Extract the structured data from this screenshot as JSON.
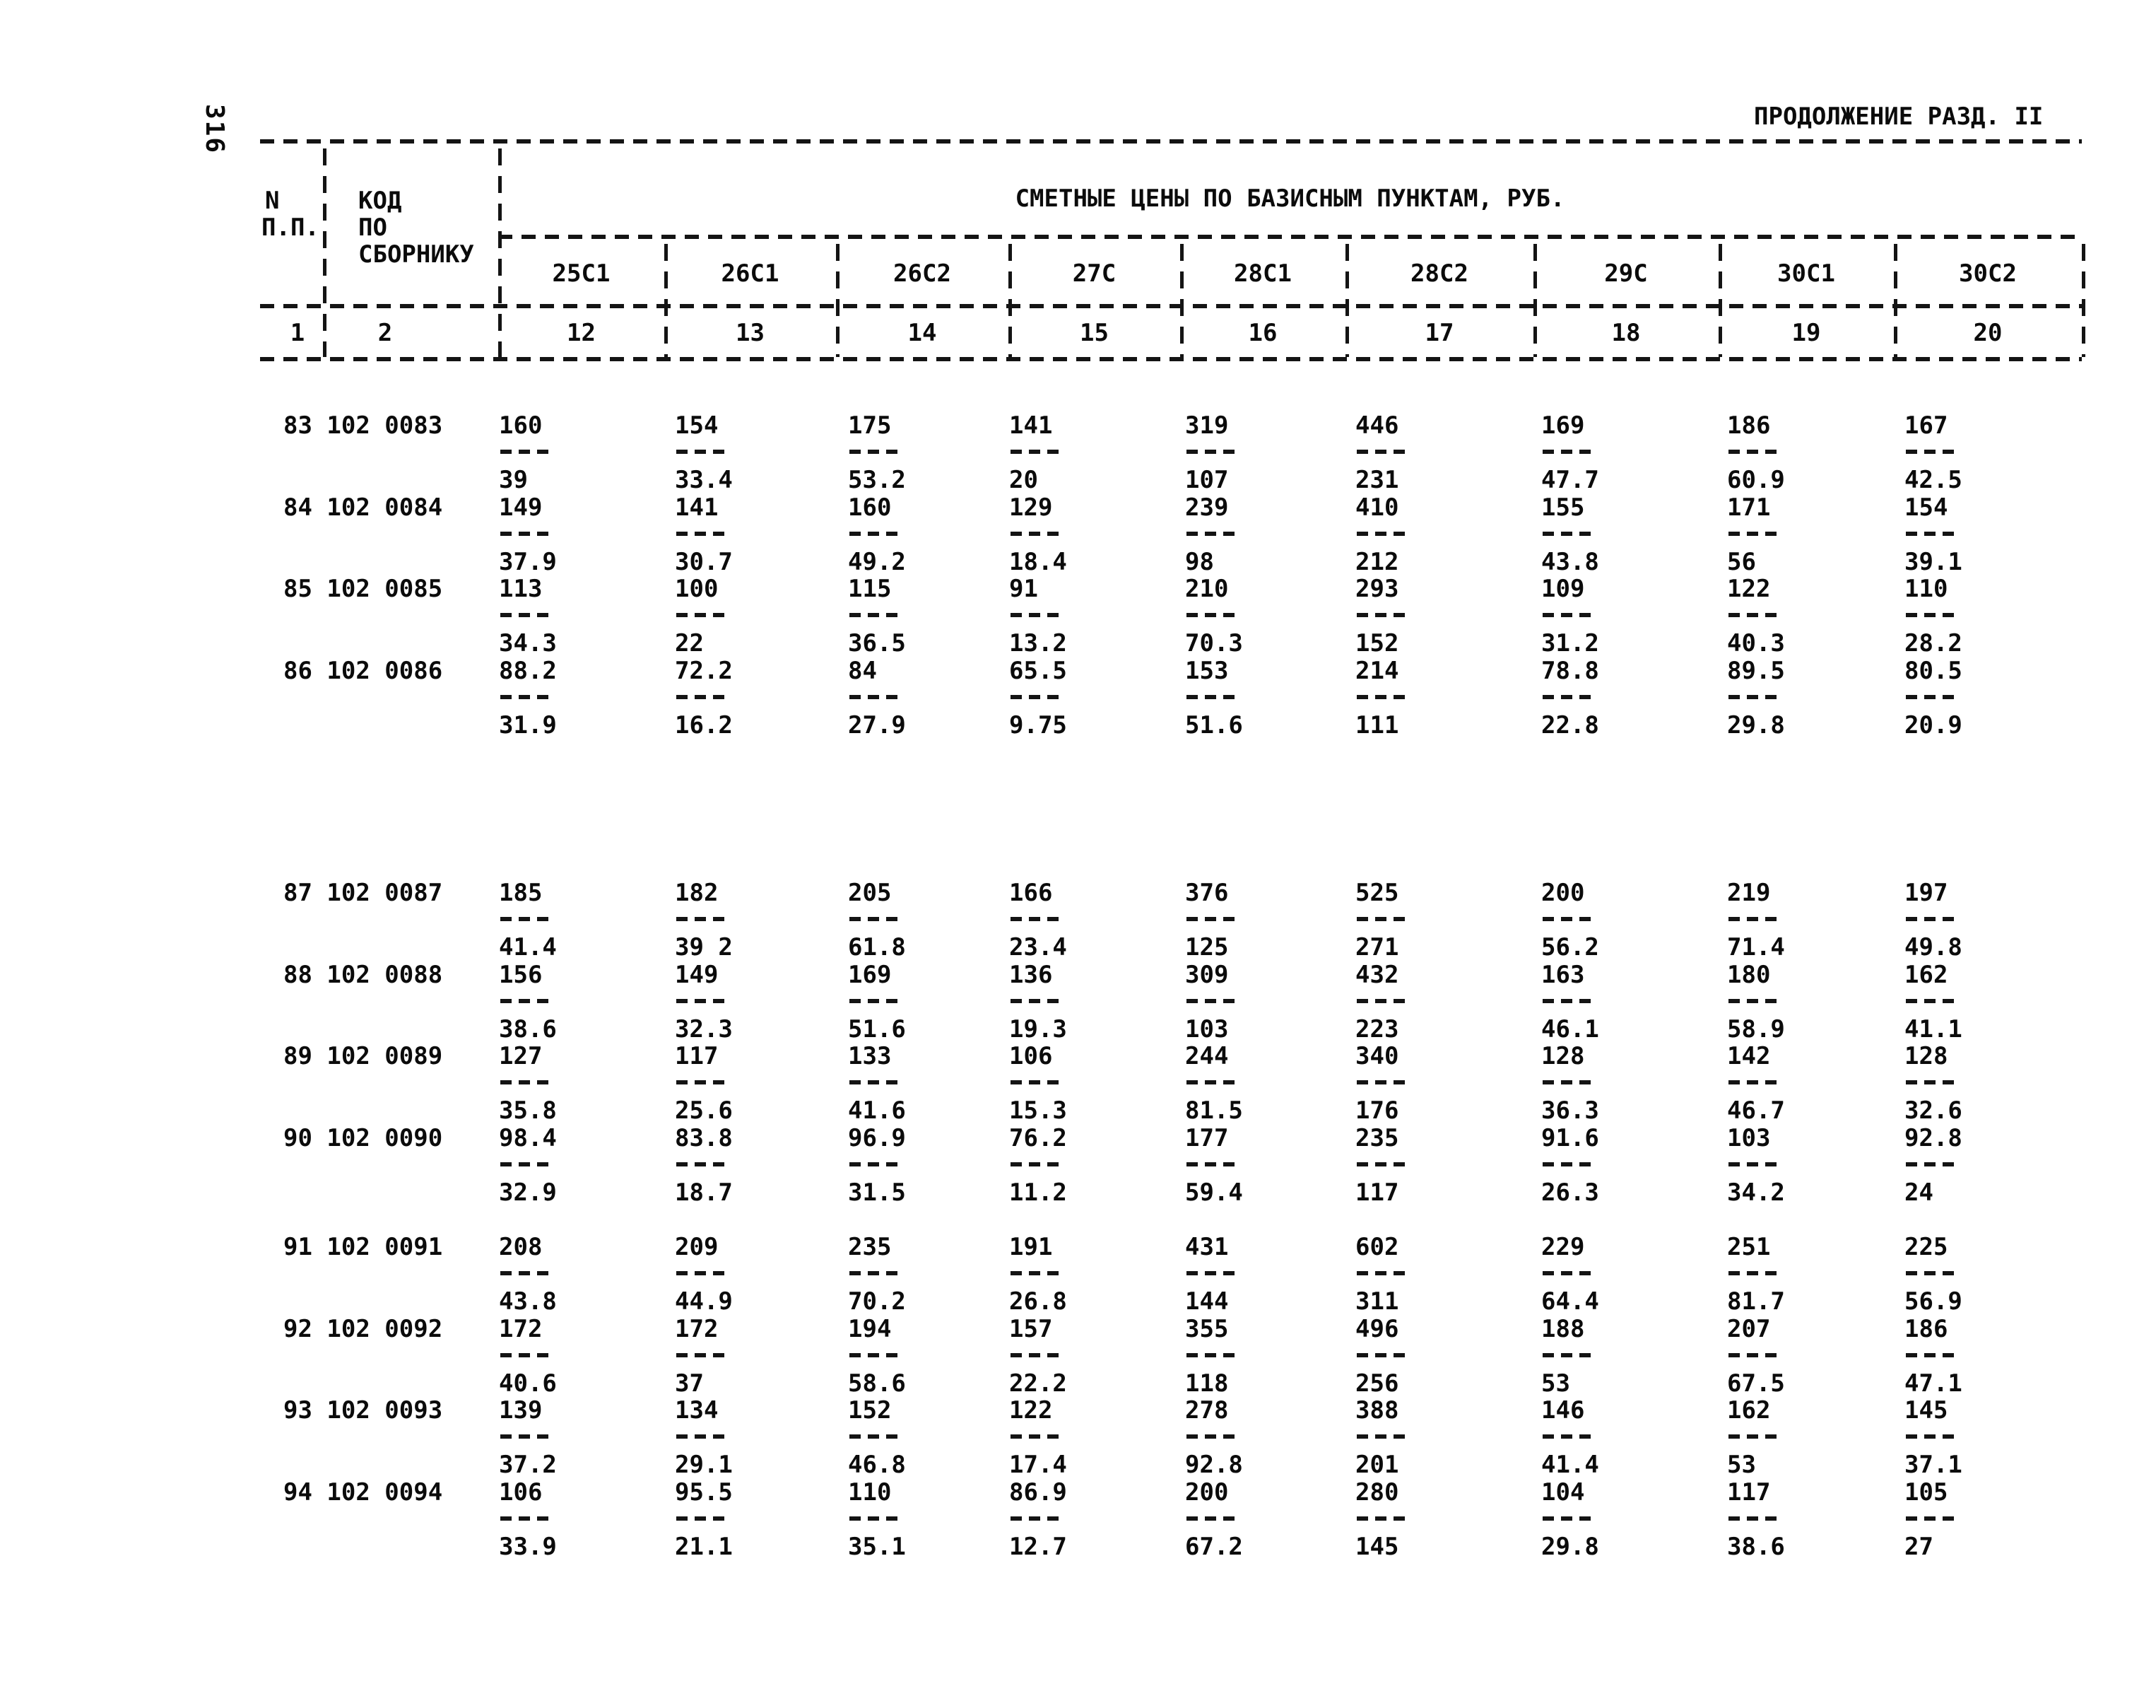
{
  "page": {
    "number": "316",
    "header_right": "ПРОДОЛЖЕНИЕ РАЗД. II"
  },
  "table": {
    "span_header": "СМЕТНЫЕ ЦЕНЫ ПО БАЗИСНЫМ ПУНКТАМ, РУБ.",
    "col1_header": {
      "line1": "N",
      "line2": "П.П."
    },
    "col2_header": {
      "line1": "КОД",
      "line2": "ПО",
      "line3": "СБОРНИКУ"
    },
    "col1_number": "1",
    "col2_number": "2",
    "price_columns": [
      {
        "code": "25С1",
        "number": "12"
      },
      {
        "code": "26С1",
        "number": "13"
      },
      {
        "code": "26С2",
        "number": "14"
      },
      {
        "code": "27С",
        "number": "15"
      },
      {
        "code": "28С1",
        "number": "16"
      },
      {
        "code": "28С2",
        "number": "17"
      },
      {
        "code": "29С",
        "number": "18"
      },
      {
        "code": "30С1",
        "number": "19"
      },
      {
        "code": "30С2",
        "number": "20"
      }
    ],
    "rows": [
      {
        "n": "83",
        "code": "102 0083",
        "values": [
          [
            "160",
            "39"
          ],
          [
            "154",
            "33.4"
          ],
          [
            "175",
            "53.2"
          ],
          [
            "141",
            "20"
          ],
          [
            "319",
            "107"
          ],
          [
            "446",
            "231"
          ],
          [
            "169",
            "47.7"
          ],
          [
            "186",
            "60.9"
          ],
          [
            "167",
            "42.5"
          ]
        ]
      },
      {
        "n": "84",
        "code": "102 0084",
        "values": [
          [
            "149",
            "37.9"
          ],
          [
            "141",
            "30.7"
          ],
          [
            "160",
            "49.2"
          ],
          [
            "129",
            "18.4"
          ],
          [
            "239",
            "98"
          ],
          [
            "410",
            "212"
          ],
          [
            "155",
            "43.8"
          ],
          [
            "171",
            "56"
          ],
          [
            "154",
            "39.1"
          ]
        ]
      },
      {
        "n": "85",
        "code": "102 0085",
        "values": [
          [
            "113",
            "34.3"
          ],
          [
            "100",
            "22"
          ],
          [
            "115",
            "36.5"
          ],
          [
            "91",
            "13.2"
          ],
          [
            "210",
            "70.3"
          ],
          [
            "293",
            "152"
          ],
          [
            "109",
            "31.2"
          ],
          [
            "122",
            "40.3"
          ],
          [
            "110",
            "28.2"
          ]
        ]
      },
      {
        "n": "86",
        "code": "102 0086",
        "values": [
          [
            "88.2",
            "31.9"
          ],
          [
            "72.2",
            "16.2"
          ],
          [
            "84",
            "27.9"
          ],
          [
            "65.5",
            "9.75"
          ],
          [
            "153",
            "51.6"
          ],
          [
            "214",
            "111"
          ],
          [
            "78.8",
            "22.8"
          ],
          [
            "89.5",
            "29.8"
          ],
          [
            "80.5",
            "20.9"
          ]
        ]
      },
      {
        "n": "87",
        "code": "102 0087",
        "values": [
          [
            "185",
            "41.4"
          ],
          [
            "182",
            "39 2"
          ],
          [
            "205",
            "61.8"
          ],
          [
            "166",
            "23.4"
          ],
          [
            "376",
            "125"
          ],
          [
            "525",
            "271"
          ],
          [
            "200",
            "56.2"
          ],
          [
            "219",
            "71.4"
          ],
          [
            "197",
            "49.8"
          ]
        ]
      },
      {
        "n": "88",
        "code": "102 0088",
        "values": [
          [
            "156",
            "38.6"
          ],
          [
            "149",
            "32.3"
          ],
          [
            "169",
            "51.6"
          ],
          [
            "136",
            "19.3"
          ],
          [
            "309",
            "103"
          ],
          [
            "432",
            "223"
          ],
          [
            "163",
            "46.1"
          ],
          [
            "180",
            "58.9"
          ],
          [
            "162",
            "41.1"
          ]
        ]
      },
      {
        "n": "89",
        "code": "102 0089",
        "values": [
          [
            "127",
            "35.8"
          ],
          [
            "117",
            "25.6"
          ],
          [
            "133",
            "41.6"
          ],
          [
            "106",
            "15.3"
          ],
          [
            "244",
            "81.5"
          ],
          [
            "340",
            "176"
          ],
          [
            "128",
            "36.3"
          ],
          [
            "142",
            "46.7"
          ],
          [
            "128",
            "32.6"
          ]
        ]
      },
      {
        "n": "90",
        "code": "102 0090",
        "values": [
          [
            "98.4",
            "32.9"
          ],
          [
            "83.8",
            "18.7"
          ],
          [
            "96.9",
            "31.5"
          ],
          [
            "76.2",
            "11.2"
          ],
          [
            "177",
            "59.4"
          ],
          [
            "235",
            "117"
          ],
          [
            "91.6",
            "26.3"
          ],
          [
            "103",
            "34.2"
          ],
          [
            "92.8",
            "24"
          ]
        ]
      },
      {
        "n": "91",
        "code": "102 0091",
        "values": [
          [
            "208",
            "43.8"
          ],
          [
            "209",
            "44.9"
          ],
          [
            "235",
            "70.2"
          ],
          [
            "191",
            "26.8"
          ],
          [
            "431",
            "144"
          ],
          [
            "602",
            "311"
          ],
          [
            "229",
            "64.4"
          ],
          [
            "251",
            "81.7"
          ],
          [
            "225",
            "56.9"
          ]
        ]
      },
      {
        "n": "92",
        "code": "102 0092",
        "values": [
          [
            "172",
            "40.6"
          ],
          [
            "172",
            "37"
          ],
          [
            "194",
            "58.6"
          ],
          [
            "157",
            "22.2"
          ],
          [
            "355",
            "118"
          ],
          [
            "496",
            "256"
          ],
          [
            "188",
            "53"
          ],
          [
            "207",
            "67.5"
          ],
          [
            "186",
            "47.1"
          ]
        ]
      },
      {
        "n": "93",
        "code": "102 0093",
        "values": [
          [
            "139",
            "37.2"
          ],
          [
            "134",
            "29.1"
          ],
          [
            "152",
            "46.8"
          ],
          [
            "122",
            "17.4"
          ],
          [
            "278",
            "92.8"
          ],
          [
            "388",
            "201"
          ],
          [
            "146",
            "41.4"
          ],
          [
            "162",
            "53"
          ],
          [
            "145",
            "37.1"
          ]
        ]
      },
      {
        "n": "94",
        "code": "102 0094",
        "values": [
          [
            "106",
            "33.9"
          ],
          [
            "95.5",
            "21.1"
          ],
          [
            "110",
            "35.1"
          ],
          [
            "86.9",
            "12.7"
          ],
          [
            "200",
            "67.2"
          ],
          [
            "280",
            "145"
          ],
          [
            "104",
            "29.8"
          ],
          [
            "117",
            "38.6"
          ],
          [
            "105",
            "27"
          ]
        ]
      }
    ]
  }
}
